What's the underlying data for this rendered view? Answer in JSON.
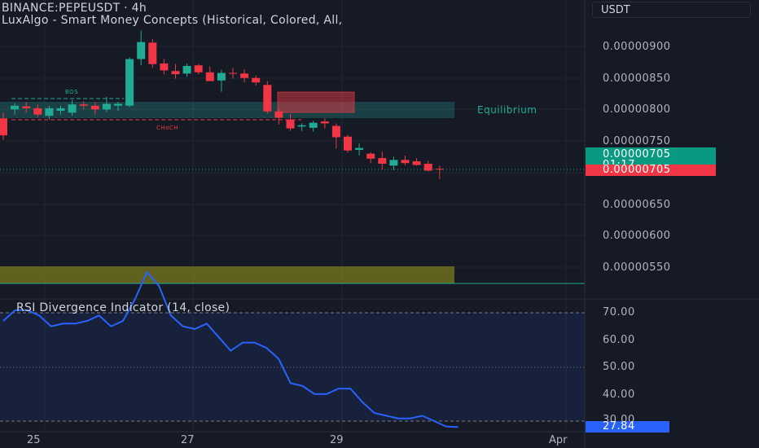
{
  "header": {
    "symbol_line": "BINANCE:PEPEUSDT · 4h",
    "indicator_line": "LuxAlgo - Smart Money Concepts (Historical, Colored, All,",
    "currency": "USDT"
  },
  "price_scale": {
    "labels": [
      "0.00000900",
      "0.00000850",
      "0.00000800",
      "0.00000750",
      "0.00000650",
      "0.00000600",
      "0.00000550"
    ],
    "last_price": "0.00000705",
    "countdown": "01:17",
    "close_price": "0.00000705"
  },
  "annotations": {
    "equilibrium": "Equilibrium",
    "bos": "BOS",
    "choch": "CHoCH"
  },
  "rsi": {
    "title": "RSI Divergence Indicator (14, close)",
    "scale_labels": [
      "70.00",
      "60.00",
      "50.00",
      "40.00",
      "30.00"
    ],
    "current_value": "27.84"
  },
  "time_axis": {
    "labels": [
      "25",
      "27",
      "29",
      "Apr"
    ]
  },
  "colors": {
    "background": "#161a25",
    "bull": "#22ab94",
    "bear": "#f23645",
    "rsi_line": "#2962ff",
    "premium_zone": "#e53945",
    "equilibrium_zone": "#26a69a",
    "discount_zone": "#7a7a1e"
  },
  "chart_data": {
    "type": "candlestick",
    "candles": [
      {
        "o": 7.86e-06,
        "h": 7.95e-06,
        "l": 7.52e-06,
        "c": 7.59e-06
      },
      {
        "o": 8e-06,
        "h": 8.1e-06,
        "l": 7.92e-06,
        "c": 8.06e-06
      },
      {
        "o": 8.05e-06,
        "h": 8.12e-06,
        "l": 7.95e-06,
        "c": 8.02e-06
      },
      {
        "o": 8.02e-06,
        "h": 8.08e-06,
        "l": 7.88e-06,
        "c": 7.92e-06
      },
      {
        "o": 7.9e-06,
        "h": 8.06e-06,
        "l": 7.84e-06,
        "c": 8.02e-06
      },
      {
        "o": 7.98e-06,
        "h": 8.06e-06,
        "l": 7.92e-06,
        "c": 8.02e-06
      },
      {
        "o": 7.95e-06,
        "h": 8.15e-06,
        "l": 7.9e-06,
        "c": 8.08e-06
      },
      {
        "o": 8.08e-06,
        "h": 8.13e-06,
        "l": 8e-06,
        "c": 8.06e-06
      },
      {
        "o": 8.06e-06,
        "h": 8.12e-06,
        "l": 7.92e-06,
        "c": 8e-06
      },
      {
        "o": 8e-06,
        "h": 8.2e-06,
        "l": 7.96e-06,
        "c": 8.09e-06
      },
      {
        "o": 8.06e-06,
        "h": 8.12e-06,
        "l": 7.98e-06,
        "c": 8.09e-06
      },
      {
        "o": 8.06e-06,
        "h": 8.83e-06,
        "l": 8.04e-06,
        "c": 8.8e-06
      },
      {
        "o": 8.8e-06,
        "h": 9.25e-06,
        "l": 8.7e-06,
        "c": 9.07e-06
      },
      {
        "o": 9.06e-06,
        "h": 9.12e-06,
        "l": 8.66e-06,
        "c": 8.72e-06
      },
      {
        "o": 8.73e-06,
        "h": 8.8e-06,
        "l": 8.56e-06,
        "c": 8.62e-06
      },
      {
        "o": 8.61e-06,
        "h": 8.72e-06,
        "l": 8.49e-06,
        "c": 8.56e-06
      },
      {
        "o": 8.57e-06,
        "h": 8.73e-06,
        "l": 8.52e-06,
        "c": 8.69e-06
      },
      {
        "o": 8.7e-06,
        "h": 8.72e-06,
        "l": 8.56e-06,
        "c": 8.59e-06
      },
      {
        "o": 8.59e-06,
        "h": 8.68e-06,
        "l": 8.46e-06,
        "c": 8.45e-06
      },
      {
        "o": 8.46e-06,
        "h": 8.63e-06,
        "l": 8.28e-06,
        "c": 8.58e-06
      },
      {
        "o": 8.58e-06,
        "h": 8.66e-06,
        "l": 8.49e-06,
        "c": 8.57e-06
      },
      {
        "o": 8.57e-06,
        "h": 8.64e-06,
        "l": 8.43e-06,
        "c": 8.5e-06
      },
      {
        "o": 8.5e-06,
        "h": 8.54e-06,
        "l": 8.38e-06,
        "c": 8.43e-06
      },
      {
        "o": 8.39e-06,
        "h": 8.45e-06,
        "l": 7.93e-06,
        "c": 7.97e-06
      },
      {
        "o": 7.97e-06,
        "h": 8e-06,
        "l": 7.76e-06,
        "c": 7.87e-06
      },
      {
        "o": 7.84e-06,
        "h": 7.93e-06,
        "l": 7.66e-06,
        "c": 7.7e-06
      },
      {
        "o": 7.73e-06,
        "h": 7.78e-06,
        "l": 7.66e-06,
        "c": 7.75e-06
      },
      {
        "o": 7.71e-06,
        "h": 7.82e-06,
        "l": 7.65e-06,
        "c": 7.79e-06
      },
      {
        "o": 7.81e-06,
        "h": 7.86e-06,
        "l": 7.7e-06,
        "c": 7.78e-06
      },
      {
        "o": 7.74e-06,
        "h": 7.78e-06,
        "l": 7.38e-06,
        "c": 7.56e-06
      },
      {
        "o": 7.57e-06,
        "h": 7.6e-06,
        "l": 7.32e-06,
        "c": 7.35e-06
      },
      {
        "o": 7.36e-06,
        "h": 7.46e-06,
        "l": 7.27e-06,
        "c": 7.39e-06
      },
      {
        "o": 7.3e-06,
        "h": 7.32e-06,
        "l": 7.15e-06,
        "c": 7.22e-06
      },
      {
        "o": 7.23e-06,
        "h": 7.33e-06,
        "l": 7.05e-06,
        "c": 7.14e-06
      },
      {
        "o": 7.11e-06,
        "h": 7.25e-06,
        "l": 7.04e-06,
        "c": 7.2e-06
      },
      {
        "o": 7.2e-06,
        "h": 7.27e-06,
        "l": 7.12e-06,
        "c": 7.15e-06
      },
      {
        "o": 7.18e-06,
        "h": 7.23e-06,
        "l": 7.11e-06,
        "c": 7.12e-06
      },
      {
        "o": 7.14e-06,
        "h": 7.19e-06,
        "l": 7.02e-06,
        "c": 7.03e-06
      },
      {
        "o": 7.06e-06,
        "h": 7.11e-06,
        "l": 6.9e-06,
        "c": 7.05e-06
      }
    ],
    "zones": [
      {
        "name": "equilibrium",
        "from": 7.9e-06,
        "to": 8.15e-06
      },
      {
        "name": "premium-order-block",
        "from": 7.97e-06,
        "to": 8.28e-06
      },
      {
        "name": "discount",
        "from": 5.28e-06,
        "to": 5.55e-06
      }
    ],
    "rsi_values": [
      67,
      71,
      71,
      69,
      65,
      66,
      66,
      67,
      69,
      65,
      67,
      75,
      85,
      80,
      69,
      65,
      64,
      66,
      61,
      56,
      59,
      59,
      57,
      53,
      44,
      43,
      40,
      40,
      42,
      42,
      37,
      33,
      32,
      31,
      31,
      32,
      30,
      28,
      27.84
    ],
    "ylim": [
      5.2e-06,
      9.4e-06
    ],
    "rsi_ylim": [
      25,
      80
    ]
  }
}
